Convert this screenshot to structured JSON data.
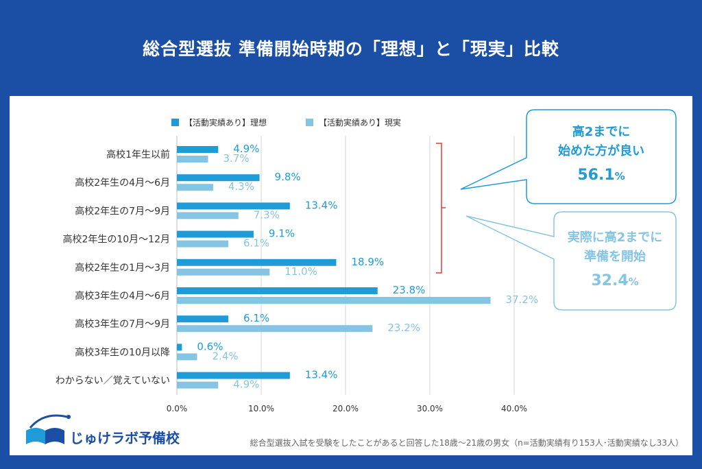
{
  "title": "総合型選抜 準備開始時期の「理想」と「現実」比較",
  "colors": {
    "ideal": "#1f9bd8",
    "real": "#86c4e4",
    "bracket": "#e53935",
    "background": "#1b4fa6"
  },
  "chart_data": {
    "type": "bar",
    "orientation": "horizontal",
    "categories": [
      "高校1年生以前",
      "高校2年生の4月～6月",
      "高校2年生の7月～9月",
      "高校2年生の10月～12月",
      "高校2年生の1月～3月",
      "高校3年生の4月～6月",
      "高校3年生の7月～9月",
      "高校3年生の10月以降",
      "わからない／覚えていない"
    ],
    "series": [
      {
        "name": "【活動実績あり】理想",
        "values": [
          4.9,
          9.8,
          13.4,
          9.1,
          18.9,
          23.8,
          6.1,
          0.6,
          13.4
        ]
      },
      {
        "name": "【活動実績あり】現実",
        "values": [
          3.7,
          4.3,
          7.3,
          6.1,
          11.0,
          37.2,
          23.2,
          2.4,
          4.9
        ]
      }
    ],
    "value_labels": [
      [
        "4.9%",
        "9.8%",
        "13.4%",
        "9.1%",
        "18.9%",
        "23.8%",
        "6.1%",
        "0.6%",
        "13.4%"
      ],
      [
        "3.7%",
        "4.3%",
        "7.3%",
        "6.1%",
        "11.0%",
        "37.2%",
        "23.2%",
        "2.4%",
        "4.9%"
      ]
    ],
    "xlim": [
      0,
      40
    ],
    "xticks": [
      "0.0%",
      "10.0%",
      "20.0%",
      "30.0%",
      "40.0%"
    ],
    "grid": true,
    "legend_position": "top"
  },
  "callouts": [
    {
      "line1": "高2までに",
      "line2": "始めた方が良い",
      "value": "56.1",
      "unit": "%"
    },
    {
      "line1": "実際に高2までに",
      "line2": "準備を開始",
      "value": "32.4",
      "unit": "%"
    }
  ],
  "logo": {
    "text": "じゅけラボ予備校"
  },
  "footnote": "総合型選抜入試を受験をしたことがあると回答した18歳～21歳の男女（n=活動実績有り153人･活動実績なし33人）"
}
